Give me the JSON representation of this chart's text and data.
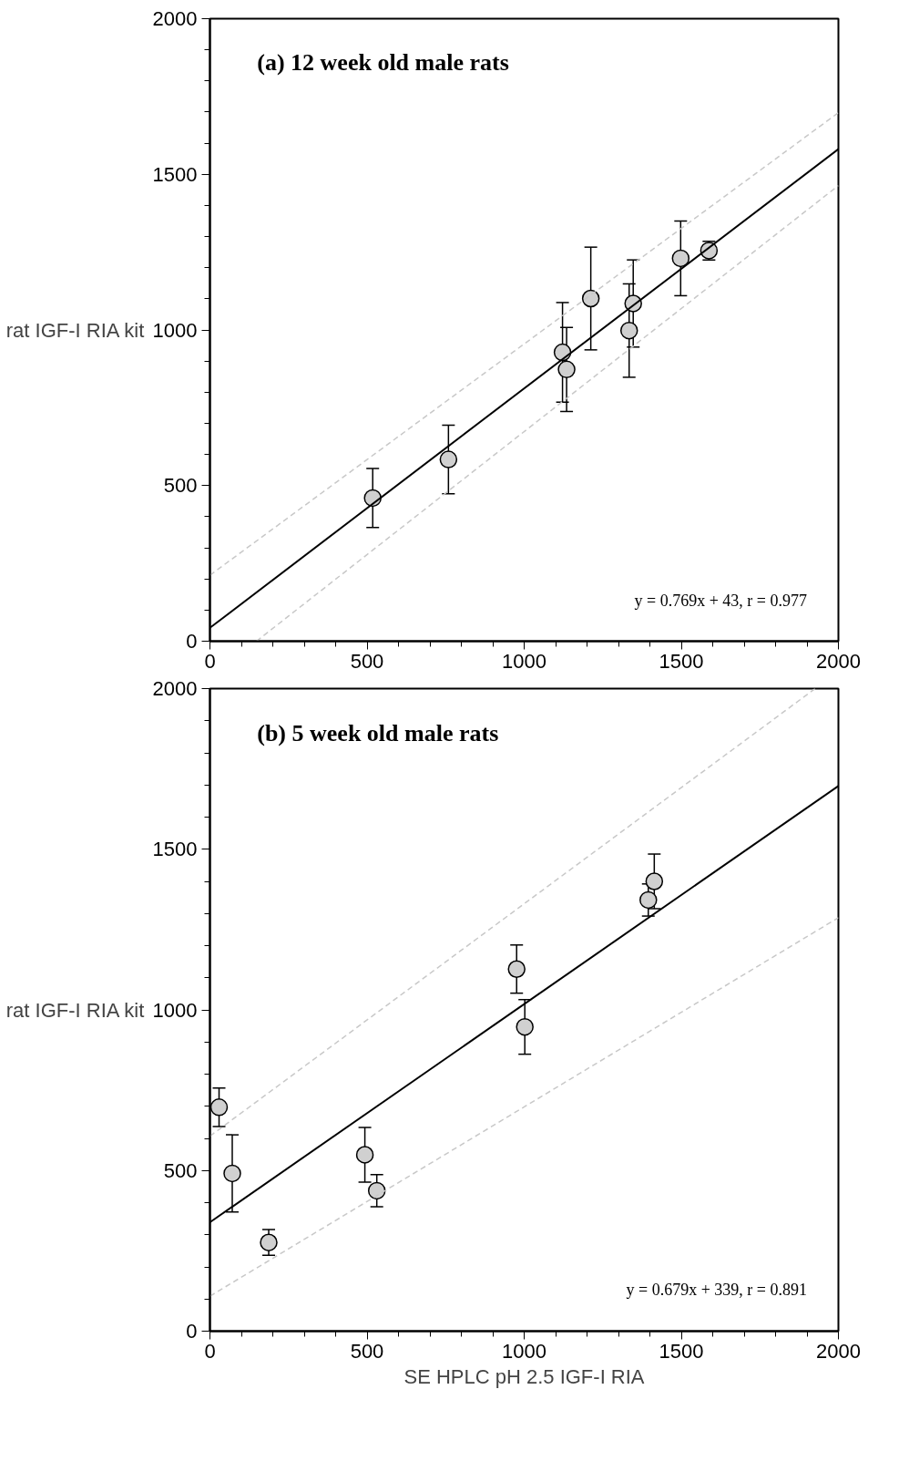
{
  "chart_data": [
    {
      "type": "scatter",
      "title": "(a) 12 week old male rats",
      "ylabel": "rat IGF-I RIA kit",
      "xlim": [
        0,
        2000
      ],
      "ylim": [
        0,
        2000
      ],
      "xticks": [
        0,
        500,
        1000,
        1500,
        2000
      ],
      "yticks": [
        0,
        500,
        1000,
        1500,
        2000
      ],
      "grid": false,
      "marker": "circle",
      "annotations": [
        "y = 0.769x + 43, r = 0.977"
      ],
      "series": [
        {
          "type": "scatter",
          "color": "#d0d0d0",
          "x": [
            518,
            759,
            1122,
            1135,
            1212,
            1334,
            1347,
            1498,
            1588
          ],
          "values": [
            460,
            584,
            928,
            873,
            1101,
            998,
            1085,
            1230,
            1255
          ],
          "errors": [
            95,
            110,
            160,
            135,
            165,
            150,
            140,
            120,
            30
          ]
        },
        {
          "type": "line",
          "color": "#000000",
          "line_style": "solid",
          "marker": "none",
          "x": [
            0,
            2000
          ],
          "values": [
            43,
            1581
          ]
        },
        {
          "type": "line",
          "color": "#c8c8c8",
          "line_style": "dashed",
          "marker": "none",
          "x": [
            0,
            2000
          ],
          "values": [
            212,
            1698
          ]
        },
        {
          "type": "line",
          "color": "#c8c8c8",
          "line_style": "dashed",
          "marker": "none",
          "x": [
            148,
            2000
          ],
          "values": [
            0,
            1464
          ]
        }
      ]
    },
    {
      "type": "scatter",
      "title": "(b) 5 week old male rats",
      "ylabel": "rat IGF-I RIA kit",
      "xlabel": "SE HPLC pH 2.5 IGF-I RIA",
      "xlim": [
        0,
        2000
      ],
      "ylim": [
        0,
        2000
      ],
      "xticks": [
        0,
        500,
        1000,
        1500,
        2000
      ],
      "yticks": [
        0,
        500,
        1000,
        1500,
        2000
      ],
      "grid": false,
      "marker": "circle",
      "annotations": [
        "y = 0.679x + 339, r = 0.891"
      ],
      "series": [
        {
          "type": "scatter",
          "color": "#d0d0d0",
          "x": [
            29,
            71,
            187,
            493,
            531,
            976,
            1002,
            1395,
            1414
          ],
          "values": [
            697,
            491,
            276,
            549,
            437,
            1127,
            947,
            1342,
            1400
          ],
          "errors": [
            60,
            120,
            40,
            85,
            50,
            75,
            85,
            50,
            85
          ]
        },
        {
          "type": "line",
          "color": "#000000",
          "line_style": "solid",
          "marker": "none",
          "x": [
            0,
            2000
          ],
          "values": [
            339,
            1697
          ]
        },
        {
          "type": "line",
          "color": "#c8c8c8",
          "line_style": "dashed",
          "marker": "none",
          "x": [
            0,
            1926
          ],
          "values": [
            607,
            2000
          ]
        },
        {
          "type": "line",
          "color": "#c8c8c8",
          "line_style": "dashed",
          "marker": "none",
          "x": [
            0,
            2000
          ],
          "values": [
            109,
            1287
          ]
        }
      ]
    }
  ]
}
